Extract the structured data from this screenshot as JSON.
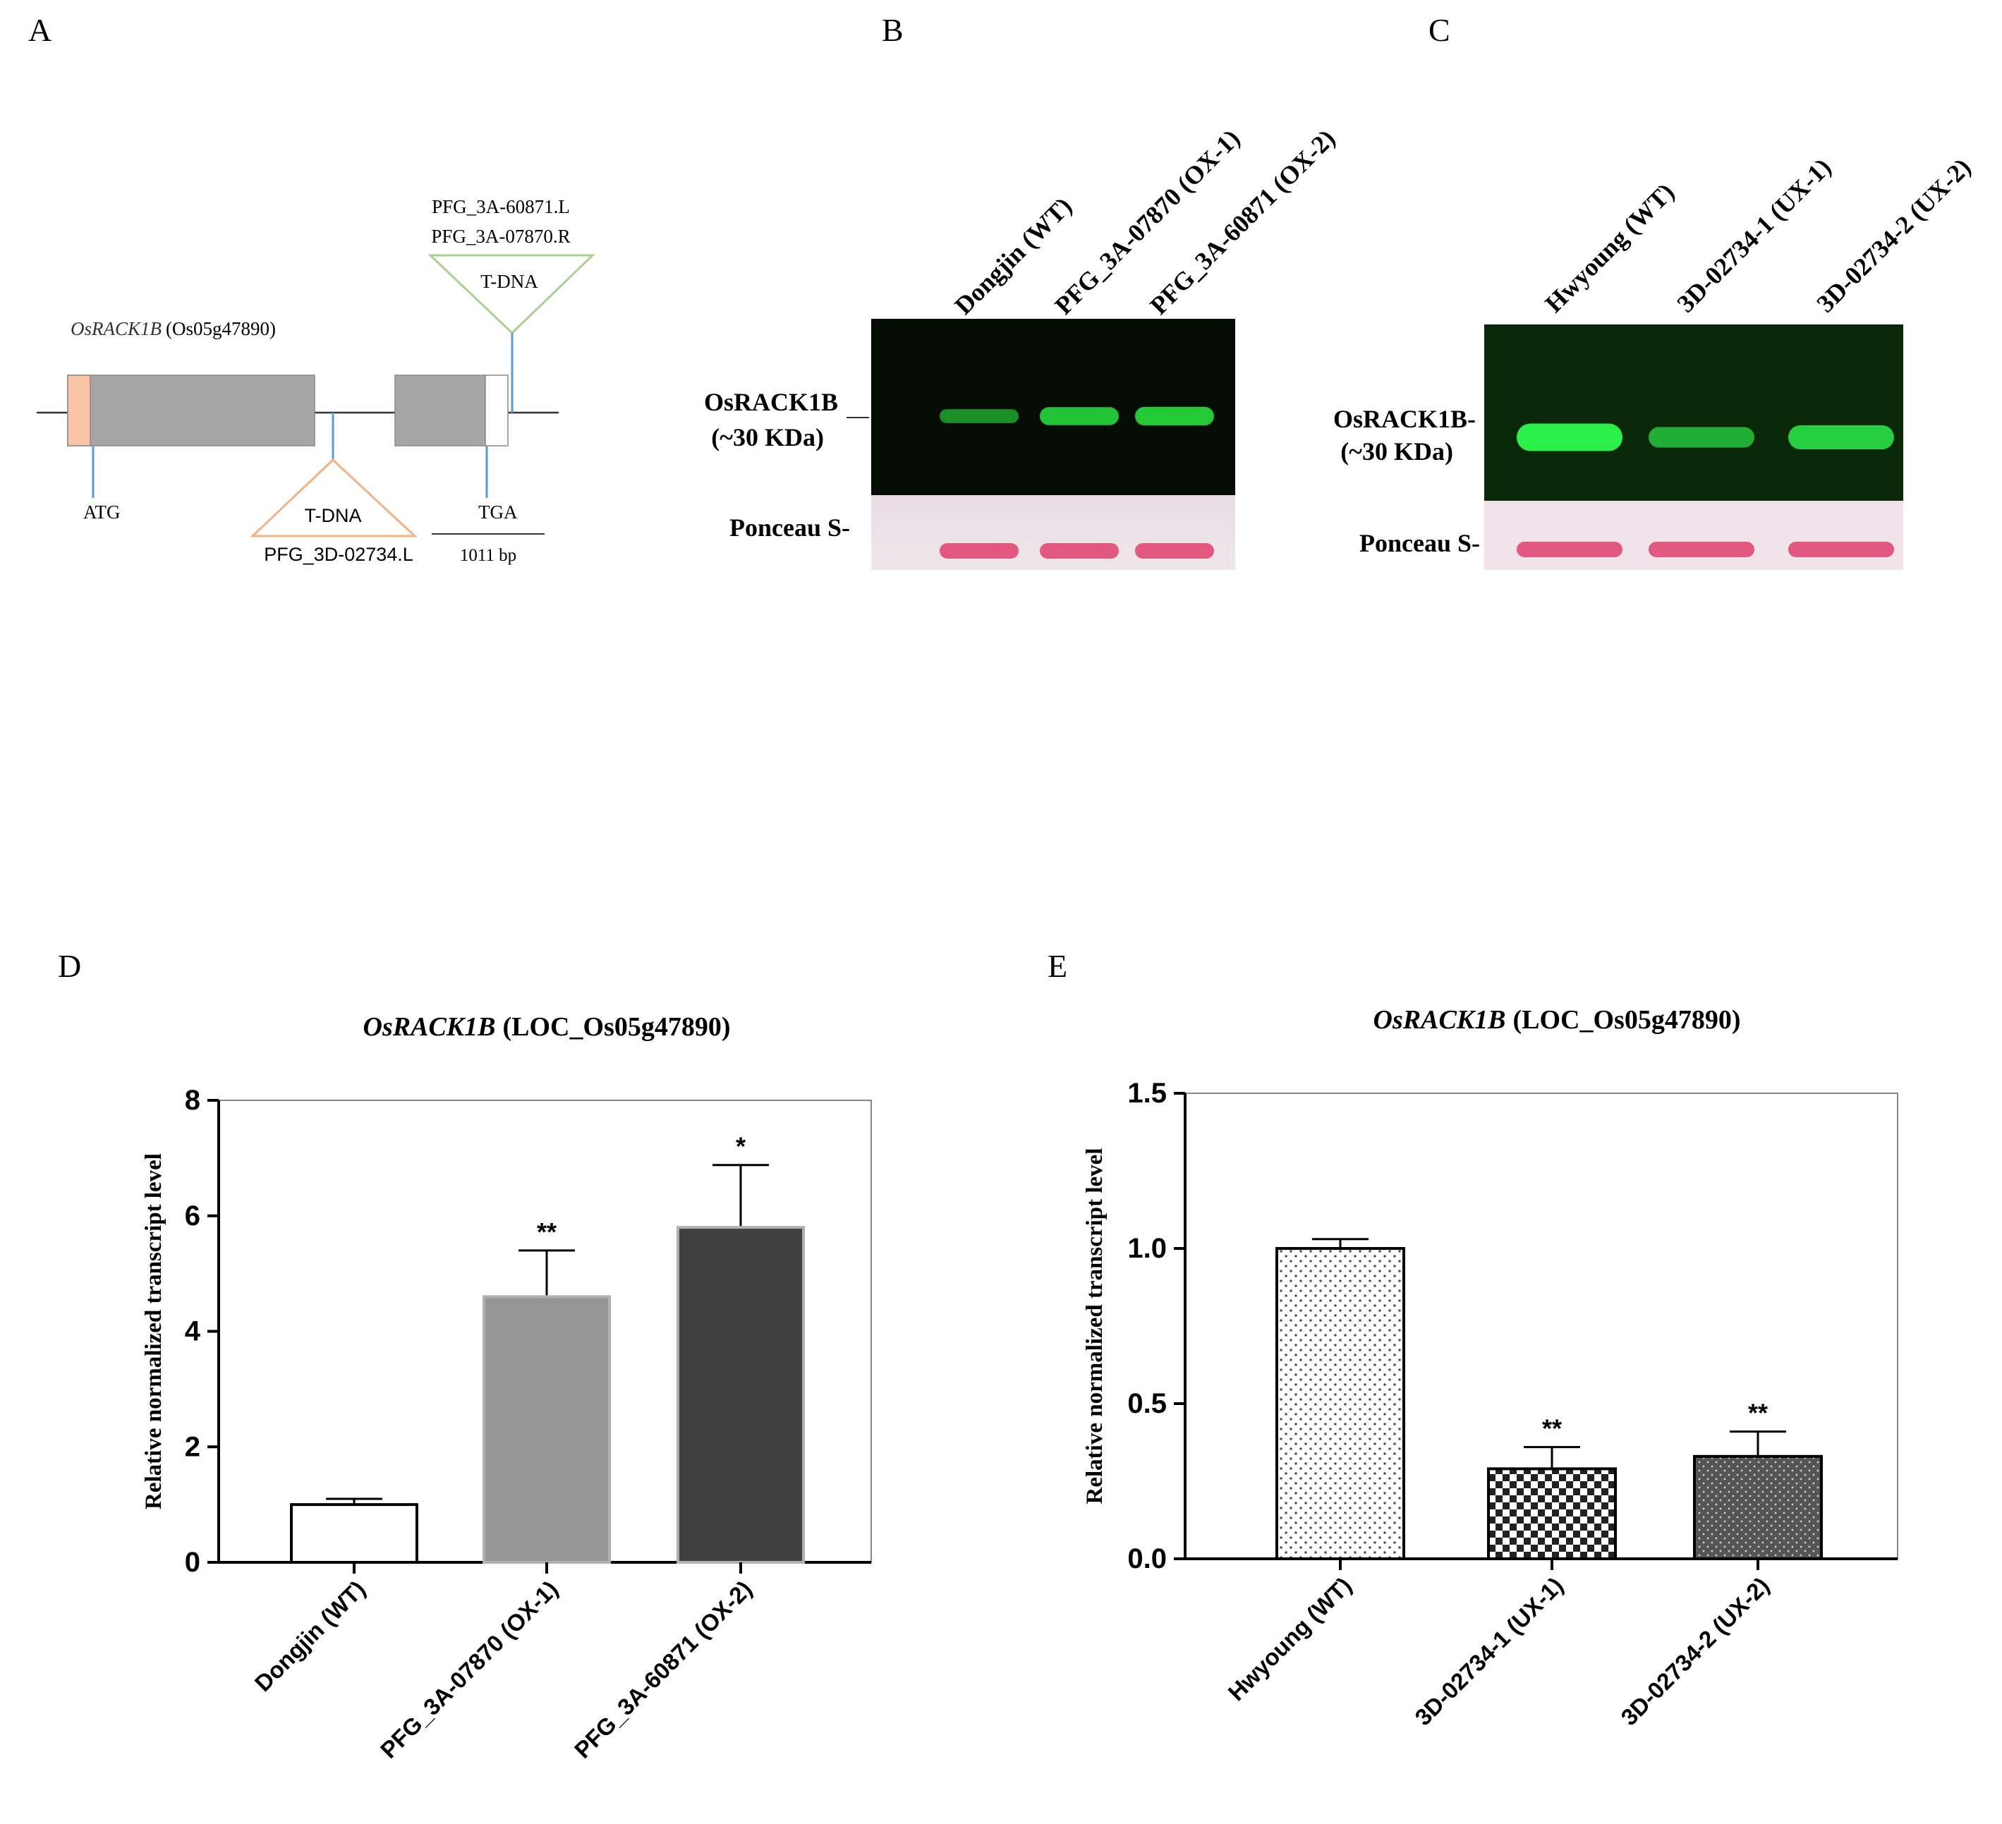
{
  "panels": {
    "a": {
      "letter": "A",
      "gene_name": "OsRACK1B",
      "gene_id": "(Os05g47890)",
      "start_codon": "ATG",
      "stop_codon": "TGA",
      "insert_label": "T-DNA",
      "lower_line": "PFG_3D-02734.L",
      "upper_line_1": "PFG_3A-60871.L",
      "upper_line_2": "PFG_3A-07870.R",
      "length": "1011 bp",
      "colors": {
        "exon": "#a6a6a6",
        "utr5": "#f8c6a6",
        "lower_insert": "#f4b183",
        "upper_insert": "#a9d18e",
        "marker": "#5b9bd5"
      }
    },
    "b": {
      "letter": "B",
      "lanes": [
        "Dongjin (WT)",
        "PFG_3A-07870 (OX-1)",
        "PFG_3A-60871 (OX-2)"
      ],
      "protein_label": "OsRACK1B",
      "size_label": "(~30 KDa)",
      "loading_label": "Ponceau S-",
      "band_intensity": [
        0.45,
        0.85,
        0.9
      ]
    },
    "c": {
      "letter": "C",
      "lanes": [
        "Hwyoung (WT)",
        "3D-02734-1 (UX-1)",
        "3D-02734-2 (UX-2)"
      ],
      "protein_label": "OsRACK1B-",
      "size_label": "(~30 KDa)",
      "loading_label": "Ponceau S-",
      "band_intensity": [
        1.0,
        0.5,
        0.75
      ]
    },
    "d": {
      "letter": "D"
    },
    "e": {
      "letter": "E"
    }
  },
  "chart_data": [
    {
      "type": "bar",
      "title_gene": "OsRACK1B",
      "title_locus": "(LOC_Os05g47890)",
      "ylabel": "Relative normalized transcript level",
      "categories": [
        "Dongjin (WT)",
        "PFG_3A-07870 (OX-1)",
        "PFG_3A-60871 (OX-2)"
      ],
      "values": [
        1.0,
        4.6,
        5.8
      ],
      "errors": [
        0.1,
        0.8,
        1.08
      ],
      "significance": [
        "",
        "**",
        "*"
      ],
      "ylim": [
        0,
        8
      ],
      "yticks": [
        "0",
        "2",
        "4",
        "6",
        "8"
      ],
      "bar_fills": [
        "#ffffff",
        "#969696",
        "#404040"
      ]
    },
    {
      "type": "bar",
      "title_gene": "OsRACK1B",
      "title_locus": "(LOC_Os05g47890)",
      "ylabel": "Relative normalized transcript level",
      "categories": [
        "Hwyoung (WT)",
        "3D-02734-1 (UX-1)",
        "3D-02734-2 (UX-2)"
      ],
      "values": [
        1.0,
        0.29,
        0.33
      ],
      "errors": [
        0.03,
        0.07,
        0.08
      ],
      "significance": [
        "",
        "**",
        "**"
      ],
      "ylim": [
        0,
        1.5
      ],
      "yticks": [
        "0.0",
        "0.5",
        "1.0",
        "1.5"
      ],
      "bar_fills": [
        "url(#patDots)",
        "url(#patChecker)",
        "url(#patDark)"
      ]
    }
  ]
}
